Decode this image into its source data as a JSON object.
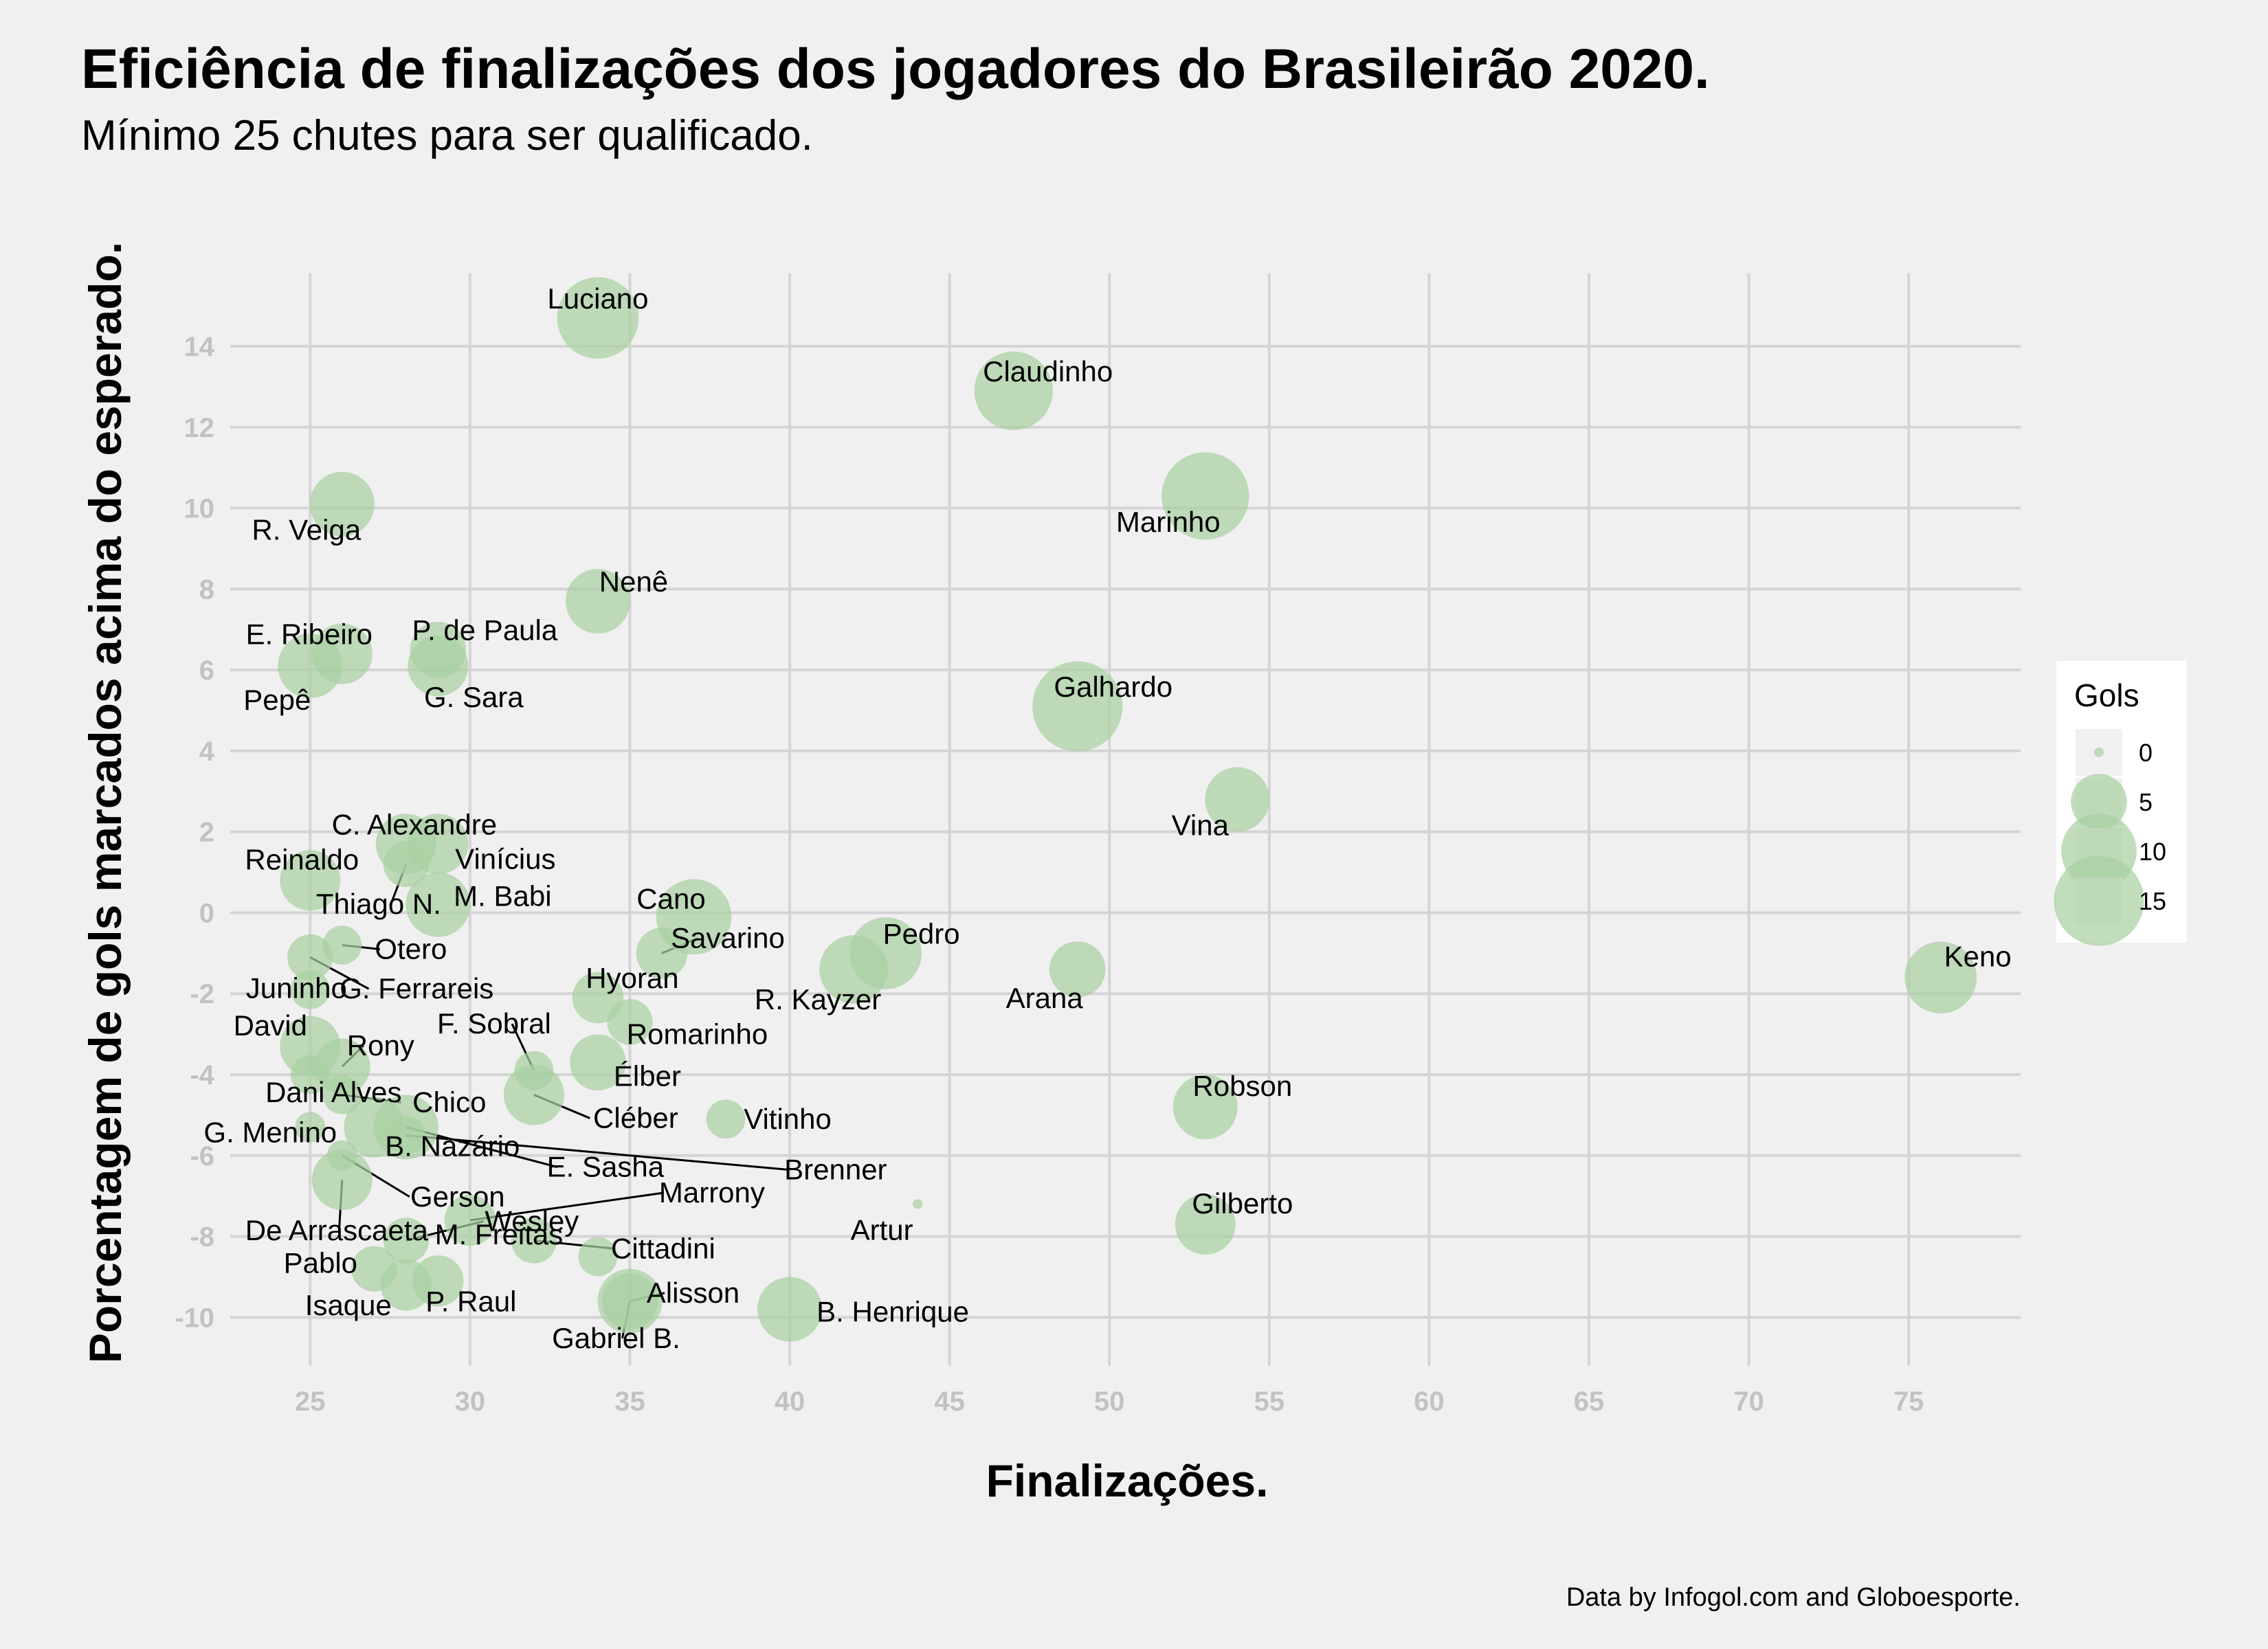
{
  "chart_data": {
    "type": "scatter",
    "title": "Eficiência de finalizações dos jogadores do Brasileirão 2020.",
    "subtitle": "Mínimo 25 chutes para ser qualificado.",
    "xlabel": "Finalizações.",
    "ylabel": "Porcentagem de gols marcados acima do esperado.",
    "caption": "Data by Infogol.com and Globoesporte.",
    "xlim": [
      22.5,
      78.5
    ],
    "ylim": [
      -11.2,
      15.8
    ],
    "xticks": [
      25,
      30,
      35,
      40,
      45,
      50,
      55,
      60,
      65,
      70,
      75
    ],
    "yticks": [
      -10,
      -8,
      -6,
      -4,
      -2,
      0,
      2,
      4,
      6,
      8,
      10,
      12,
      14
    ],
    "grid": true,
    "point_color": "#a9d0a2",
    "legend": {
      "title": "Gols",
      "placement": "right",
      "entries": [
        {
          "label": "0",
          "value": 0
        },
        {
          "label": "5",
          "value": 5
        },
        {
          "label": "10",
          "value": 10
        },
        {
          "label": "15",
          "value": 15
        }
      ]
    },
    "points": [
      {
        "name": "Luciano",
        "x": 34,
        "y": 14.7,
        "gols": 12
      },
      {
        "name": "Claudinho",
        "x": 47,
        "y": 12.9,
        "gols": 11
      },
      {
        "name": "Marinho",
        "x": 53,
        "y": 10.3,
        "gols": 14
      },
      {
        "name": "R. Veiga",
        "x": 26,
        "y": 10.1,
        "gols": 7
      },
      {
        "name": "Nenê",
        "x": 34,
        "y": 7.7,
        "gols": 7
      },
      {
        "name": "E. Ribeiro",
        "x": 26,
        "y": 6.4,
        "gols": 6
      },
      {
        "name": "P. de Paula",
        "x": 29,
        "y": 6.5,
        "gols": 5
      },
      {
        "name": "Pepê",
        "x": 25,
        "y": 6.1,
        "gols": 7
      },
      {
        "name": "G. Sara",
        "x": 29,
        "y": 6.1,
        "gols": 6
      },
      {
        "name": "Galhardo",
        "x": 49,
        "y": 5.1,
        "gols": 15
      },
      {
        "name": "Vina",
        "x": 54,
        "y": 2.8,
        "gols": 7
      },
      {
        "name": "C. Alexandre",
        "x": 28,
        "y": 1.7,
        "gols": 6
      },
      {
        "name": "Vinícius",
        "x": 29,
        "y": 1.7,
        "gols": 6
      },
      {
        "name": "Reinaldo",
        "x": 25,
        "y": 0.8,
        "gols": 6
      },
      {
        "name": "Thiago N.",
        "x": 28,
        "y": 1.2,
        "gols": 3
      },
      {
        "name": "M. Babi",
        "x": 29,
        "y": 0.2,
        "gols": 7
      },
      {
        "name": "Cano",
        "x": 37,
        "y": -0.1,
        "gols": 10
      },
      {
        "name": "Savarino",
        "x": 36,
        "y": -1.0,
        "gols": 4
      },
      {
        "name": "Pedro",
        "x": 43,
        "y": -1.0,
        "gols": 9
      },
      {
        "name": "Otero",
        "x": 26,
        "y": -0.8,
        "gols": 2
      },
      {
        "name": "G. Ferrareis",
        "x": 25,
        "y": -1.1,
        "gols": 3
      },
      {
        "name": "Juninho",
        "x": 25,
        "y": -1.9,
        "gols": 2
      },
      {
        "name": "Hyoran",
        "x": 34,
        "y": -2.1,
        "gols": 4
      },
      {
        "name": "R. Kayzer",
        "x": 42,
        "y": -1.4,
        "gols": 8
      },
      {
        "name": "Arana",
        "x": 49,
        "y": -1.4,
        "gols": 5
      },
      {
        "name": "Keno",
        "x": 76,
        "y": -1.6,
        "gols": 9
      },
      {
        "name": "Romarinho",
        "x": 35,
        "y": -2.7,
        "gols": 3
      },
      {
        "name": "David",
        "x": 25,
        "y": -3.3,
        "gols": 6
      },
      {
        "name": "Rony",
        "x": 26,
        "y": -3.8,
        "gols": 5
      },
      {
        "name": "F. Sobral",
        "x": 32,
        "y": -3.9,
        "gols": 2
      },
      {
        "name": "Élber",
        "x": 34,
        "y": -3.7,
        "gols": 5
      },
      {
        "name": "Dani Alves",
        "x": 25,
        "y": -4.0,
        "gols": 2
      },
      {
        "name": "Chico",
        "x": 26,
        "y": -4.5,
        "gols": 2
      },
      {
        "name": "Cléber",
        "x": 32,
        "y": -4.5,
        "gols": 6
      },
      {
        "name": "B. Nazário",
        "x": 27,
        "y": -5.3,
        "gols": 6
      },
      {
        "name": "Vitinho",
        "x": 38,
        "y": -5.1,
        "gols": 2
      },
      {
        "name": "Robson",
        "x": 53,
        "y": -4.8,
        "gols": 7
      },
      {
        "name": "G. Menino",
        "x": 25,
        "y": -5.3,
        "gols": 1
      },
      {
        "name": "E. Sasha",
        "x": 28,
        "y": -5.3,
        "gols": 7
      },
      {
        "name": "Brenner",
        "x": 28,
        "y": -5.5,
        "gols": 2
      },
      {
        "name": "Gerson",
        "x": 26,
        "y": -6.0,
        "gols": 1
      },
      {
        "name": "De Arrascaeta",
        "x": 26,
        "y": -6.6,
        "gols": 6
      },
      {
        "name": "Marrony",
        "x": 30,
        "y": -7.6,
        "gols": 4
      },
      {
        "name": "Wesley",
        "x": 28,
        "y": -8.1,
        "gols": 3
      },
      {
        "name": "Artur",
        "x": 44,
        "y": -7.2,
        "gols": 0
      },
      {
        "name": "Gilberto",
        "x": 53,
        "y": -7.7,
        "gols": 6
      },
      {
        "name": "Cittadini",
        "x": 32,
        "y": -8.1,
        "gols": 3
      },
      {
        "name": "Pablo",
        "x": 27,
        "y": -8.8,
        "gols": 3
      },
      {
        "name": "M. Freitas",
        "x": 34,
        "y": -8.5,
        "gols": 2
      },
      {
        "name": "Isaque",
        "x": 28,
        "y": -9.2,
        "gols": 4
      },
      {
        "name": "P. Raul",
        "x": 29,
        "y": -9.1,
        "gols": 4
      },
      {
        "name": "Alisson",
        "x": 35,
        "y": -9.6,
        "gols": 7
      },
      {
        "name": "Gabriel B.",
        "x": 35,
        "y": -9.6,
        "gols": 5
      },
      {
        "name": "B. Henrique",
        "x": 40,
        "y": -9.8,
        "gols": 7
      }
    ]
  }
}
